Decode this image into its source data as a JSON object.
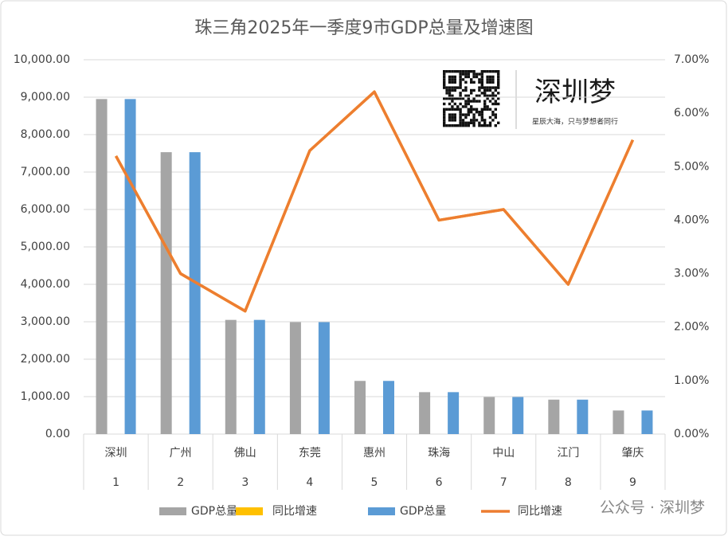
{
  "chart_data": {
    "type": "bar",
    "title": "珠三角2025年一季度9市GDP总量及增速图",
    "categories": [
      "深圳",
      "广州",
      "佛山",
      "东莞",
      "惠州",
      "珠海",
      "中山",
      "江门",
      "肇庆"
    ],
    "category_numbers": [
      "1",
      "2",
      "3",
      "4",
      "5",
      "6",
      "7",
      "8",
      "9"
    ],
    "series": [
      {
        "name": "GDP总量",
        "type": "bar",
        "color": "#a5a5a5",
        "values": [
          8950,
          7530,
          3050,
          2990,
          1420,
          1120,
          990,
          920,
          630
        ]
      },
      {
        "name": "同比增速",
        "type": "line",
        "axis": "y2",
        "color": "#ffc000",
        "values": [
          5.2,
          3.0,
          2.3,
          5.3,
          6.4,
          4.0,
          4.2,
          2.8,
          5.5
        ]
      },
      {
        "name": "GDP总量",
        "type": "bar",
        "color": "#5b9bd5",
        "values": [
          8950,
          7530,
          3050,
          2990,
          1420,
          1120,
          990,
          920,
          630
        ]
      },
      {
        "name": "同比增速",
        "type": "line",
        "axis": "y2",
        "color": "#ed7d31",
        "values": [
          5.2,
          3.0,
          2.3,
          5.3,
          6.4,
          4.0,
          4.2,
          2.8,
          5.5
        ]
      }
    ],
    "ylim": [
      0,
      10000
    ],
    "yticks": [
      {
        "value": 0,
        "label": "0.00"
      },
      {
        "value": 1000,
        "label": "1,000.00"
      },
      {
        "value": 2000,
        "label": "2,000.00"
      },
      {
        "value": 3000,
        "label": "3,000.00"
      },
      {
        "value": 4000,
        "label": "4,000.00"
      },
      {
        "value": 5000,
        "label": "5,000.00"
      },
      {
        "value": 6000,
        "label": "6,000.00"
      },
      {
        "value": 7000,
        "label": "7,000.00"
      },
      {
        "value": 8000,
        "label": "8,000.00"
      },
      {
        "value": 9000,
        "label": "9,000.00"
      },
      {
        "value": 10000,
        "label": "10,000.00"
      }
    ],
    "y2lim": [
      0,
      7
    ],
    "y2ticks": [
      {
        "value": 0,
        "label": "0.00%"
      },
      {
        "value": 1,
        "label": "1.00%"
      },
      {
        "value": 2,
        "label": "2.00%"
      },
      {
        "value": 3,
        "label": "3.00%"
      },
      {
        "value": 4,
        "label": "4.00%"
      },
      {
        "value": 5,
        "label": "5.00%"
      },
      {
        "value": 6,
        "label": "6.00%"
      },
      {
        "value": 7,
        "label": "7.00%"
      }
    ],
    "grid": true,
    "legend": "bottom"
  },
  "watermark": {
    "brand": "深圳梦",
    "slogan": "星辰大海，只与梦想者同行",
    "footer": "公众号 · 深圳梦"
  }
}
